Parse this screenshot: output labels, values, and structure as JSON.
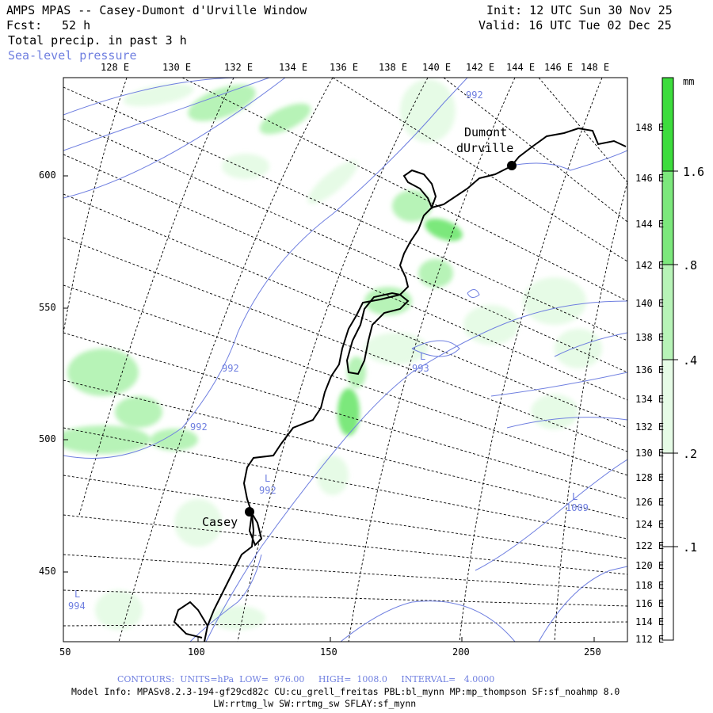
{
  "header": {
    "title": "AMPS MPAS -- Casey-Dumont d'Urville Window",
    "init": "Init: 12 UTC Sun 30 Nov 25",
    "fcst_label": "Fcst:",
    "fcst_value": "52 h",
    "valid": "Valid: 16 UTC Tue 02 Dec 25",
    "field": "Total precip. in past 3 h",
    "overlay": "Sea-level pressure"
  },
  "top_lon_labels": [
    "128 E",
    "130 E",
    "132 E",
    "134 E",
    "136 E",
    "138 E",
    "140 E",
    "142 E",
    "144 E",
    "146 E",
    "148 E"
  ],
  "right_lon_labels": [
    "148 E",
    "146 E",
    "144 E",
    "142 E",
    "140 E",
    "138 E",
    "136 E",
    "134 E",
    "132 E",
    "130 E",
    "128 E",
    "126 E",
    "124 E",
    "122 E",
    "120 E",
    "118 E",
    "116 E",
    "114 E",
    "112 E"
  ],
  "y_ticks": [
    "600",
    "550",
    "500",
    "450"
  ],
  "x_ticks": [
    "50",
    "100",
    "150",
    "200",
    "250"
  ],
  "colorbar": {
    "unit": "mm",
    "labels": [
      "1.6",
      ".8",
      ".4",
      ".2",
      ".1"
    ],
    "colors": [
      "#3ddc3d",
      "#7ce87c",
      "#b7f3b7",
      "#e6fbe6"
    ]
  },
  "stations": [
    {
      "name_line1": "Dumont",
      "name_line2": "dUrville"
    },
    {
      "name_line1": "Casey",
      "name_line2": ""
    }
  ],
  "pressure_labels": [
    "992",
    "992",
    "992",
    "993",
    "992",
    "1009",
    "994"
  ],
  "lows": [
    "L",
    "L",
    "L",
    "L"
  ],
  "footer": {
    "contours": "CONTOURS:  UNITS=hPa  LOW=  976.00     HIGH=  1008.0     INTERVAL=   4.0000",
    "model_info_1": "Model Info: MPASv8.2.3-194-gf29cd82c CU:cu_grell_freitas PBL:bl_mynn MP:mp_thompson SF:sf_noahmp 8.0",
    "model_info_2": "LW:rrtmg_lw SW:rrtmg_sw SFLAY:sf_mynn"
  }
}
